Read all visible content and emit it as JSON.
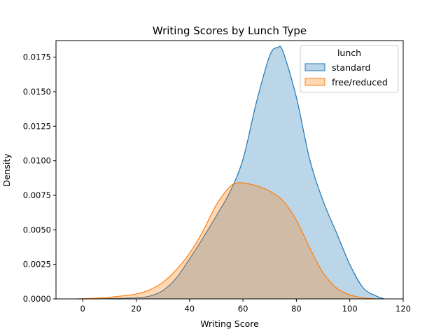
{
  "chart_data": {
    "type": "area",
    "title": "Writing Scores by Lunch Type",
    "xlabel": "Writing Score",
    "ylabel": "Density",
    "xlim": [
      -10,
      120
    ],
    "ylim": [
      0,
      0.0187
    ],
    "xticks": [
      0,
      20,
      40,
      60,
      80,
      100,
      120
    ],
    "xtick_labels": [
      "0",
      "20",
      "40",
      "60",
      "80",
      "100",
      "120"
    ],
    "yticks": [
      0,
      0.0025,
      0.005,
      0.0075,
      0.01,
      0.0125,
      0.015,
      0.0175
    ],
    "ytick_labels": [
      "0.0000",
      "0.0025",
      "0.0050",
      "0.0075",
      "0.0100",
      "0.0125",
      "0.0150",
      "0.0175"
    ],
    "grid": false,
    "legend": {
      "title": "lunch",
      "placement": "top-right"
    },
    "series": [
      {
        "name": "standard",
        "color": "#1f77b4",
        "x": [
          0,
          10,
          20,
          25,
          30,
          35,
          40,
          45,
          50,
          55,
          60,
          65,
          70,
          73,
          75,
          80,
          85,
          90,
          95,
          100,
          105,
          110,
          113
        ],
        "values": [
          0.0,
          2e-05,
          8e-05,
          0.0002,
          0.0006,
          0.0015,
          0.0029,
          0.0044,
          0.006,
          0.0077,
          0.0101,
          0.0142,
          0.0176,
          0.0182,
          0.0179,
          0.0146,
          0.0101,
          0.0071,
          0.0048,
          0.0025,
          0.0008,
          0.0002,
          0.0
        ]
      },
      {
        "name": "free/reduced",
        "color": "#ff7f0e",
        "x": [
          -2,
          5,
          10,
          15,
          20,
          25,
          30,
          35,
          40,
          45,
          50,
          55,
          58,
          60,
          65,
          70,
          75,
          80,
          85,
          90,
          95,
          100,
          105,
          110
        ],
        "values": [
          0.0,
          5e-05,
          0.00012,
          0.00022,
          0.00035,
          0.00065,
          0.0012,
          0.0021,
          0.0033,
          0.0049,
          0.0068,
          0.0081,
          0.0084,
          0.0084,
          0.0082,
          0.0078,
          0.0071,
          0.0057,
          0.0037,
          0.0019,
          0.0008,
          0.0003,
          8e-05,
          0.0
        ]
      }
    ]
  }
}
